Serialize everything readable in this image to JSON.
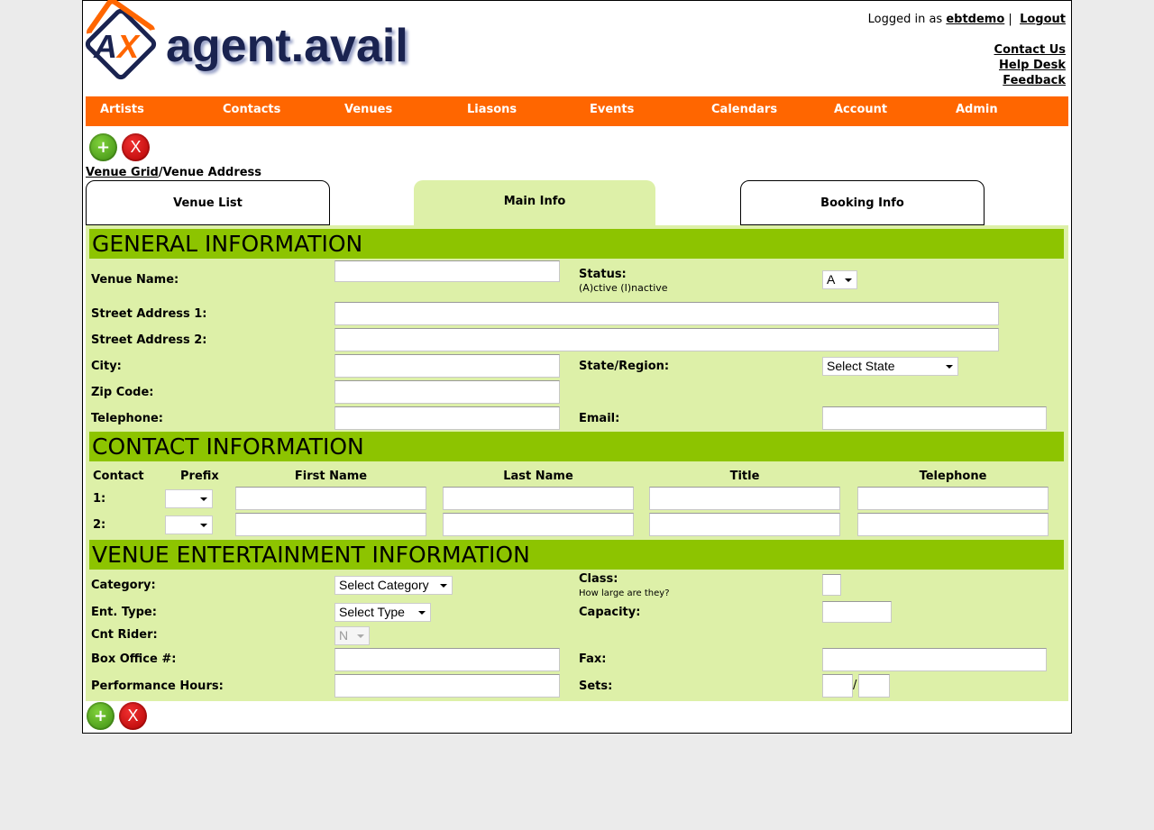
{
  "header": {
    "logo_text": "agent.avail",
    "logged_in_prefix": "Logged in as",
    "username": "ebtdemo",
    "separator": "|",
    "logout": "Logout",
    "links": [
      "Contact Us",
      "Help Desk",
      "Feedback"
    ]
  },
  "nav": [
    "Artists",
    "Contacts",
    "Venues",
    "Liasons",
    "Events",
    "Calendars",
    "Account",
    "Admin"
  ],
  "actions": {
    "add": "+",
    "delete": "X"
  },
  "breadcrumb": {
    "link": "Venue Grid",
    "sep": "/",
    "current": "Venue Address"
  },
  "tabs": [
    "Venue List",
    "Main Info",
    "Booking Info"
  ],
  "general": {
    "title": "GENERAL INFORMATION",
    "venue_name": "Venue Name:",
    "status": "Status:",
    "status_hint": "(A)ctive (I)nactive",
    "status_value": "A",
    "street1": "Street Address 1:",
    "street2": "Street Address 2:",
    "city": "City:",
    "state": "State/Region:",
    "state_value": "Select State",
    "zip": "Zip Code:",
    "telephone": "Telephone:",
    "email": "Email:",
    "values": {
      "venue_name": "",
      "street1": "",
      "street2": "",
      "city": "",
      "zip": "",
      "telephone": "",
      "email": ""
    }
  },
  "contact": {
    "title": "CONTACT INFORMATION",
    "headers": [
      "Contact",
      "Prefix",
      "First Name",
      "Last Name",
      "Title",
      "Telephone"
    ],
    "rows": [
      {
        "label": "1:",
        "prefix": "",
        "first": "",
        "last": "",
        "title": "",
        "phone": ""
      },
      {
        "label": "2:",
        "prefix": "",
        "first": "",
        "last": "",
        "title": "",
        "phone": ""
      }
    ]
  },
  "entertainment": {
    "title": "VENUE ENTERTAINMENT INFORMATION",
    "category": "Category:",
    "category_value": "Select Category",
    "class": "Class:",
    "class_hint": "How large are they?",
    "ent_type": "Ent. Type:",
    "ent_type_value": "Select Type",
    "capacity": "Capacity:",
    "cnt_rider": "Cnt Rider:",
    "cnt_rider_value": "N",
    "box_office": "Box Office #:",
    "fax": "Fax:",
    "perf_hours": "Performance Hours:",
    "sets": "Sets:",
    "sets_sep": "/"
  },
  "colors": {
    "nav": "#ff6600",
    "section": "#8dc400",
    "panel": "#ddf0a8"
  }
}
